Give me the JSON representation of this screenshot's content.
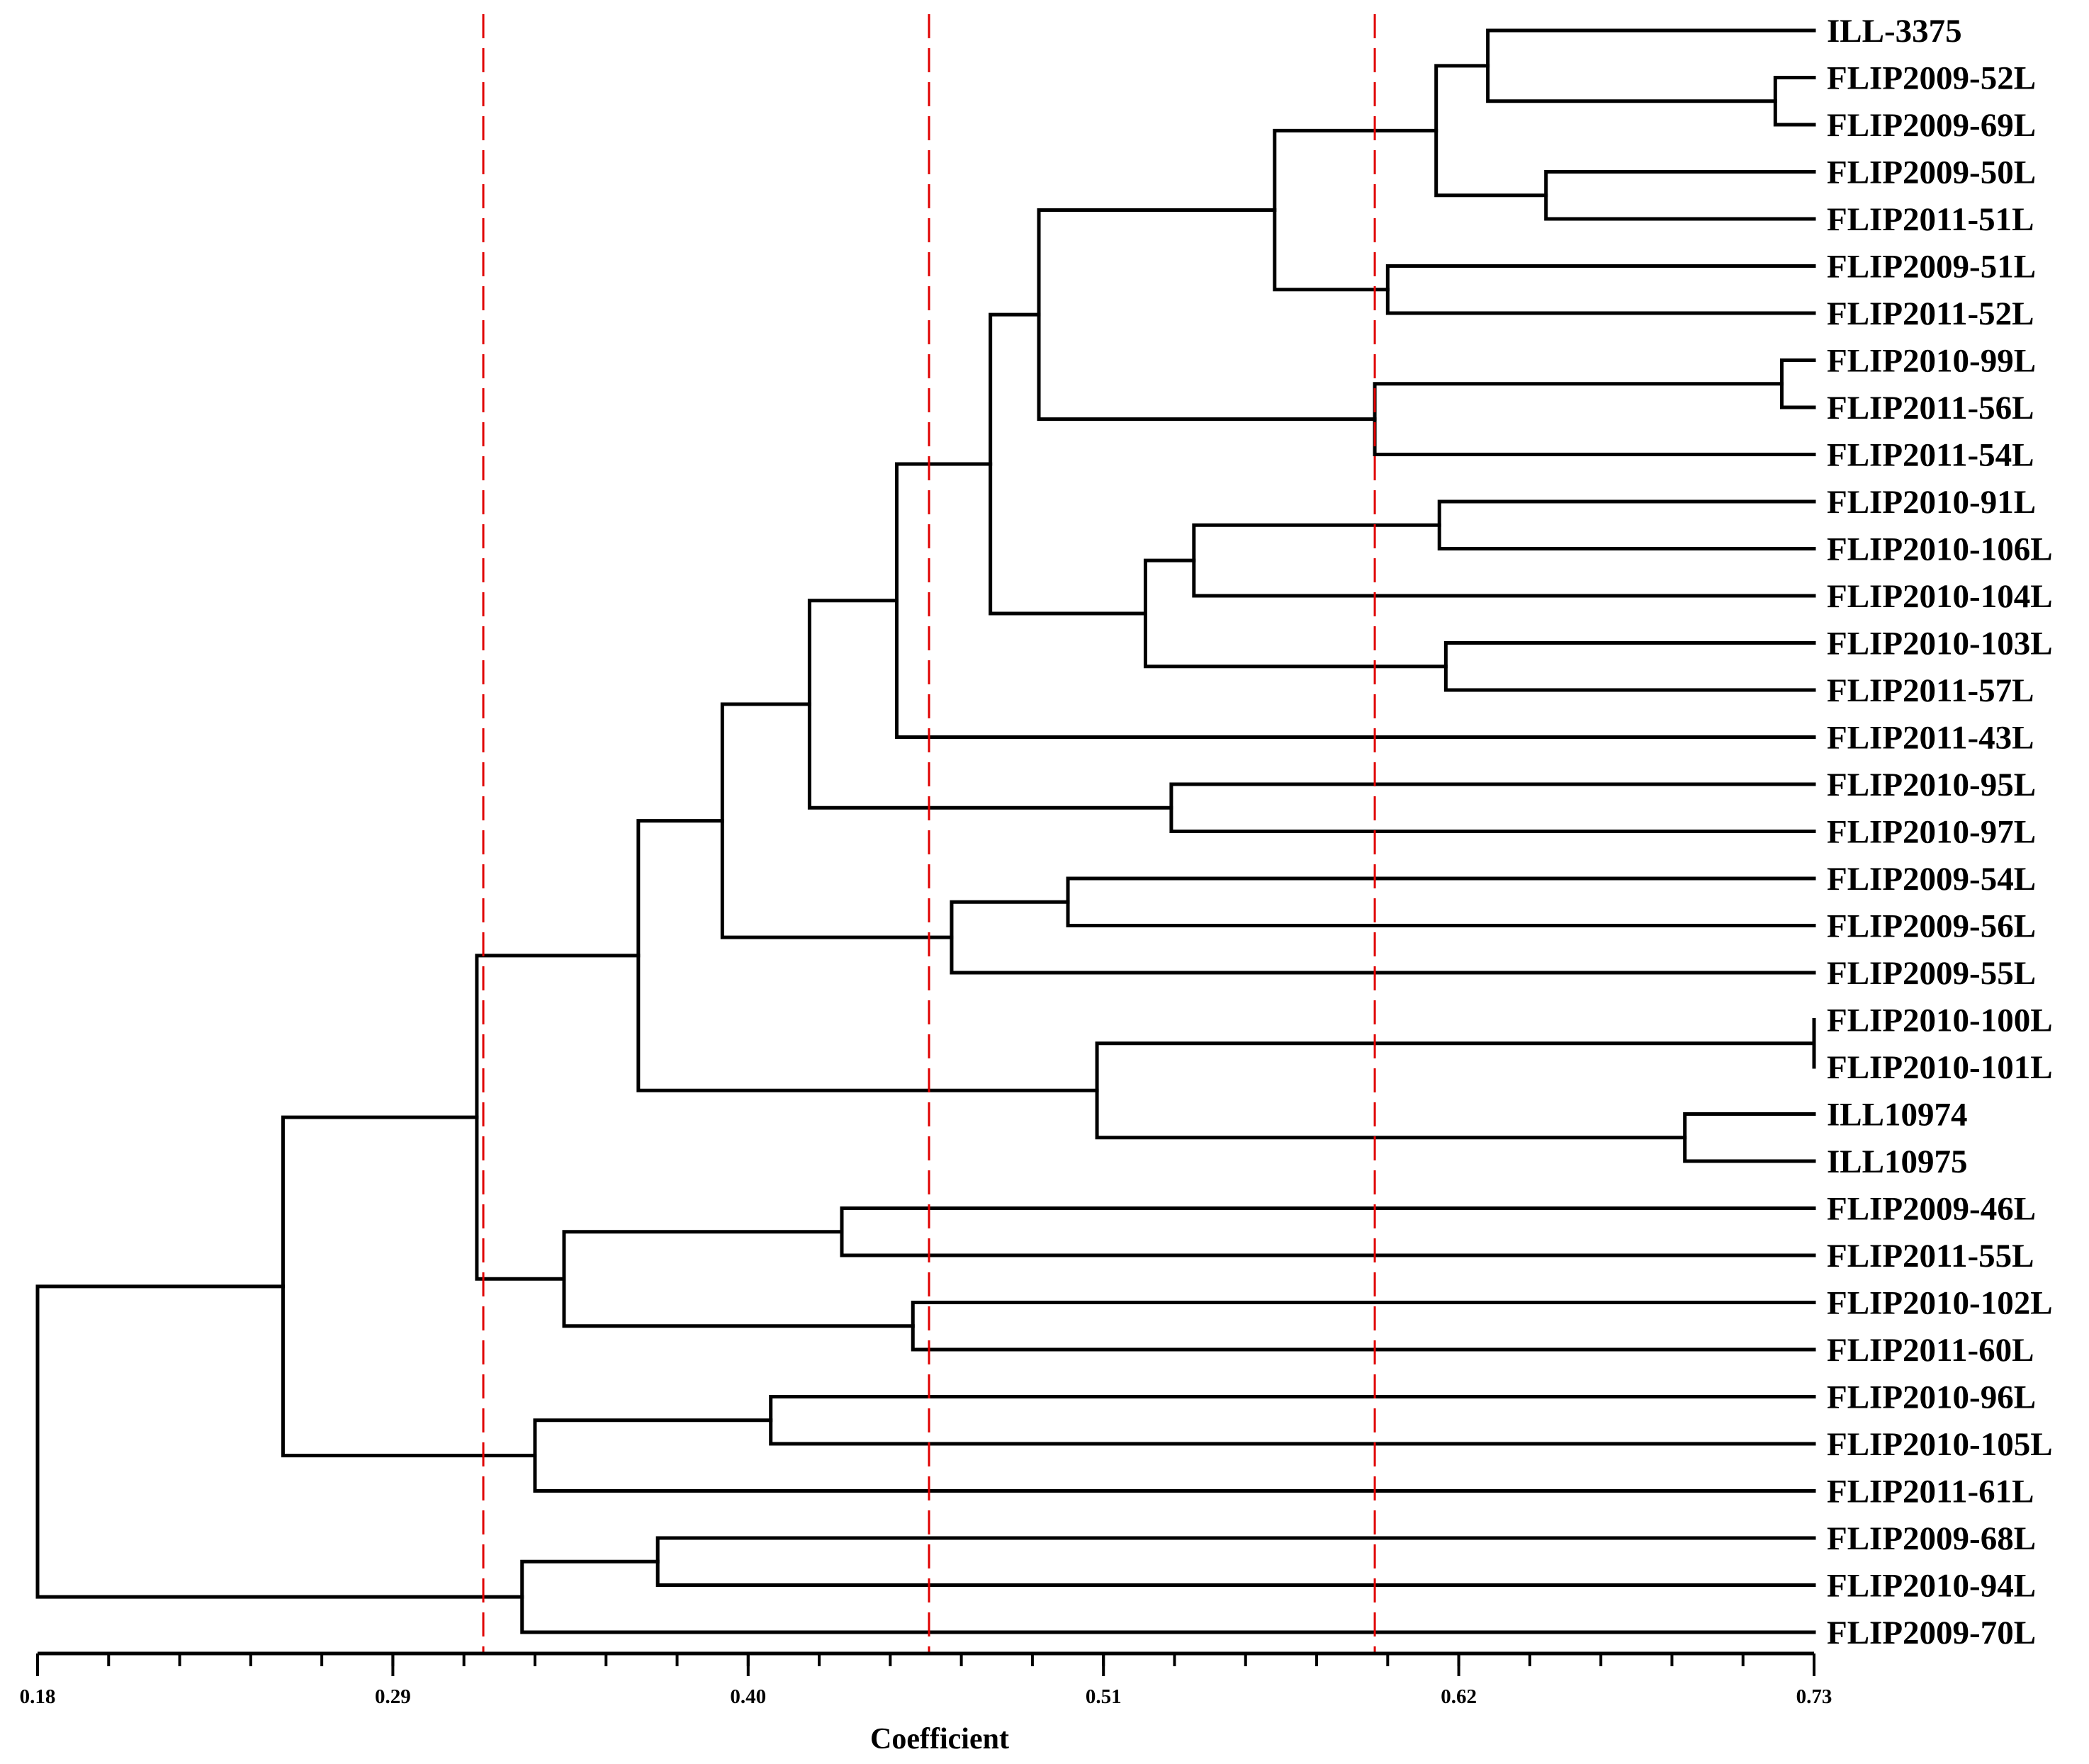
{
  "chart_data": {
    "type": "dendrogram",
    "xlabel": "Coefficient",
    "x_range": [
      0.18,
      0.73
    ],
    "ticks": [
      "0.18",
      "0.29",
      "0.40",
      "0.51",
      "0.62",
      "0.73"
    ],
    "tick_values": [
      0.18,
      0.29,
      0.4,
      0.51,
      0.62,
      0.73
    ],
    "minor_tick_step": 0.022,
    "cut_lines": [
      0.318,
      0.456,
      0.594
    ],
    "colors": {
      "branch": "#000000",
      "cut_line": "#e00000"
    },
    "leaves": [
      "ILL-3375",
      "FLIP2009-52L",
      "FLIP2009-69L",
      "FLIP2009-50L",
      "FLIP2011-51L",
      "FLIP2009-51L",
      "FLIP2011-52L",
      "FLIP2010-99L",
      "FLIP2011-56L",
      "FLIP2011-54L",
      "FLIP2010-91L",
      "FLIP2010-106L",
      "FLIP2010-104L",
      "FLIP2010-103L",
      "FLIP2011-57L",
      "FLIP2011-43L",
      "FLIP2010-95L",
      "FLIP2010-97L",
      "FLIP2009-54L",
      "FLIP2009-56L",
      "FLIP2009-55L",
      "FLIP2010-100L",
      "FLIP2010-101L",
      "ILL10974",
      "ILL10975",
      "FLIP2009-46L",
      "FLIP2011-55L",
      "FLIP2010-102L",
      "FLIP2011-60L",
      "FLIP2010-96L",
      "FLIP2010-105L",
      "FLIP2011-61L",
      "FLIP2009-68L",
      "FLIP2010-94L",
      "FLIP2009-70L"
    ],
    "merges": [
      {
        "id": "a1",
        "children": [
          1,
          2
        ],
        "height": 0.718
      },
      {
        "id": "a2",
        "children": [
          0,
          "a1"
        ],
        "height": 0.629
      },
      {
        "id": "a3",
        "children": [
          3,
          4
        ],
        "height": 0.647
      },
      {
        "id": "a4",
        "children": [
          "a2",
          "a3"
        ],
        "height": 0.613
      },
      {
        "id": "a5",
        "children": [
          5,
          6
        ],
        "height": 0.598
      },
      {
        "id": "a6",
        "children": [
          "a4",
          "a5"
        ],
        "height": 0.563
      },
      {
        "id": "b1",
        "children": [
          7,
          8
        ],
        "height": 0.72
      },
      {
        "id": "b2",
        "children": [
          "b1",
          9
        ],
        "height": 0.594
      },
      {
        "id": "c1",
        "children": [
          "a6",
          "b2"
        ],
        "height": 0.49
      },
      {
        "id": "d1",
        "children": [
          10,
          11
        ],
        "height": 0.614
      },
      {
        "id": "d2",
        "children": [
          "d1",
          12
        ],
        "height": 0.538
      },
      {
        "id": "d3",
        "children": [
          13,
          14
        ],
        "height": 0.616
      },
      {
        "id": "d4",
        "children": [
          "d2",
          "d3"
        ],
        "height": 0.523
      },
      {
        "id": "e1",
        "children": [
          "c1",
          "d4"
        ],
        "height": 0.475
      },
      {
        "id": "e2",
        "children": [
          "e1",
          15
        ],
        "height": 0.446
      },
      {
        "id": "f1",
        "children": [
          16,
          17
        ],
        "height": 0.531
      },
      {
        "id": "e3",
        "children": [
          "e2",
          "f1"
        ],
        "height": 0.419
      },
      {
        "id": "g1",
        "children": [
          18,
          19
        ],
        "height": 0.499
      },
      {
        "id": "g2",
        "children": [
          "g1",
          20
        ],
        "height": 0.463
      },
      {
        "id": "e4",
        "children": [
          "e3",
          "g2"
        ],
        "height": 0.392
      },
      {
        "id": "h1",
        "children": [
          21,
          22
        ],
        "height": 0.73
      },
      {
        "id": "h2",
        "children": [
          23,
          24
        ],
        "height": 0.69
      },
      {
        "id": "h3",
        "children": [
          "h1",
          "h2"
        ],
        "height": 0.508
      },
      {
        "id": "e5",
        "children": [
          "e4",
          "h3"
        ],
        "height": 0.366
      },
      {
        "id": "i1",
        "children": [
          25,
          26
        ],
        "height": 0.429
      },
      {
        "id": "i2",
        "children": [
          27,
          28
        ],
        "height": 0.451
      },
      {
        "id": "i3",
        "children": [
          "i1",
          "i2"
        ],
        "height": 0.343
      },
      {
        "id": "j1",
        "children": [
          "e5",
          "i3"
        ],
        "height": 0.316
      },
      {
        "id": "k1",
        "children": [
          29,
          30
        ],
        "height": 0.407
      },
      {
        "id": "k2",
        "children": [
          "k1",
          31
        ],
        "height": 0.334
      },
      {
        "id": "l1",
        "children": [
          "j1",
          "k2"
        ],
        "height": 0.256
      },
      {
        "id": "m1",
        "children": [
          32,
          33
        ],
        "height": 0.372
      },
      {
        "id": "m2",
        "children": [
          "m1",
          34
        ],
        "height": 0.33
      },
      {
        "id": "root",
        "children": [
          "l1",
          "m2"
        ],
        "height": 0.18
      }
    ]
  }
}
